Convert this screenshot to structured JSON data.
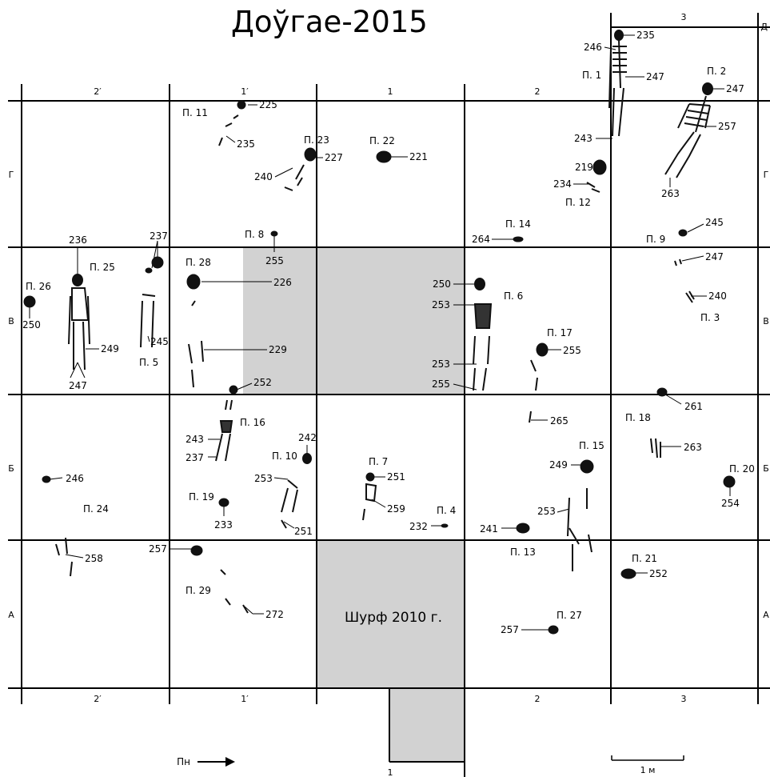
{
  "title": "Доўгае-2015",
  "columns": [
    "2′",
    "1′",
    "1",
    "2",
    "3"
  ],
  "rows": [
    "Д",
    "Г",
    "В",
    "Б",
    "А"
  ],
  "bottom_label": "1",
  "shurf_label": "Шурф 2010 г.",
  "north_label": "Пн",
  "scale_label": "1 м",
  "burial_labels": [
    {
      "id": "p1",
      "text": "П. 1"
    },
    {
      "id": "p2",
      "text": "П. 2"
    },
    {
      "id": "p3",
      "text": "П. 3"
    },
    {
      "id": "p4",
      "text": "П. 4"
    },
    {
      "id": "p5",
      "text": "П. 5"
    },
    {
      "id": "p6",
      "text": "П. 6"
    },
    {
      "id": "p7",
      "text": "П. 7"
    },
    {
      "id": "p8",
      "text": "П. 8"
    },
    {
      "id": "p9",
      "text": "П. 9"
    },
    {
      "id": "p10",
      "text": "П. 10"
    },
    {
      "id": "p11",
      "text": "П. 11"
    },
    {
      "id": "p12",
      "text": "П. 12"
    },
    {
      "id": "p13",
      "text": "П. 13"
    },
    {
      "id": "p14",
      "text": "П. 14"
    },
    {
      "id": "p15",
      "text": "П. 15"
    },
    {
      "id": "p16",
      "text": "П. 16"
    },
    {
      "id": "p17",
      "text": "П. 17"
    },
    {
      "id": "p18",
      "text": "П. 18"
    },
    {
      "id": "p19",
      "text": "П. 19"
    },
    {
      "id": "p20",
      "text": "П. 20"
    },
    {
      "id": "p21",
      "text": "П. 21"
    },
    {
      "id": "p22",
      "text": "П. 22"
    },
    {
      "id": "p23",
      "text": "П. 23"
    },
    {
      "id": "p24",
      "text": "П. 24"
    },
    {
      "id": "p25",
      "text": "П. 25"
    },
    {
      "id": "p26",
      "text": "П. 26"
    },
    {
      "id": "p27",
      "text": "П. 27"
    },
    {
      "id": "p28",
      "text": "П. 28"
    },
    {
      "id": "p29",
      "text": "П. 29"
    }
  ],
  "depth_labels": [
    "235",
    "246",
    "247",
    "247",
    "257",
    "243",
    "219",
    "234",
    "263",
    "245",
    "264",
    "247",
    "240",
    "225",
    "235",
    "227",
    "240",
    "221",
    "255",
    "236",
    "237",
    "250",
    "249",
    "245",
    "247",
    "226",
    "229",
    "252",
    "250",
    "253",
    "253",
    "255",
    "255",
    "261",
    "265",
    "263",
    "254",
    "249",
    "253",
    "241",
    "252",
    "257",
    "242",
    "243",
    "237",
    "253",
    "251",
    "251",
    "259",
    "232",
    "246",
    "233",
    "258",
    "257",
    "272"
  ]
}
